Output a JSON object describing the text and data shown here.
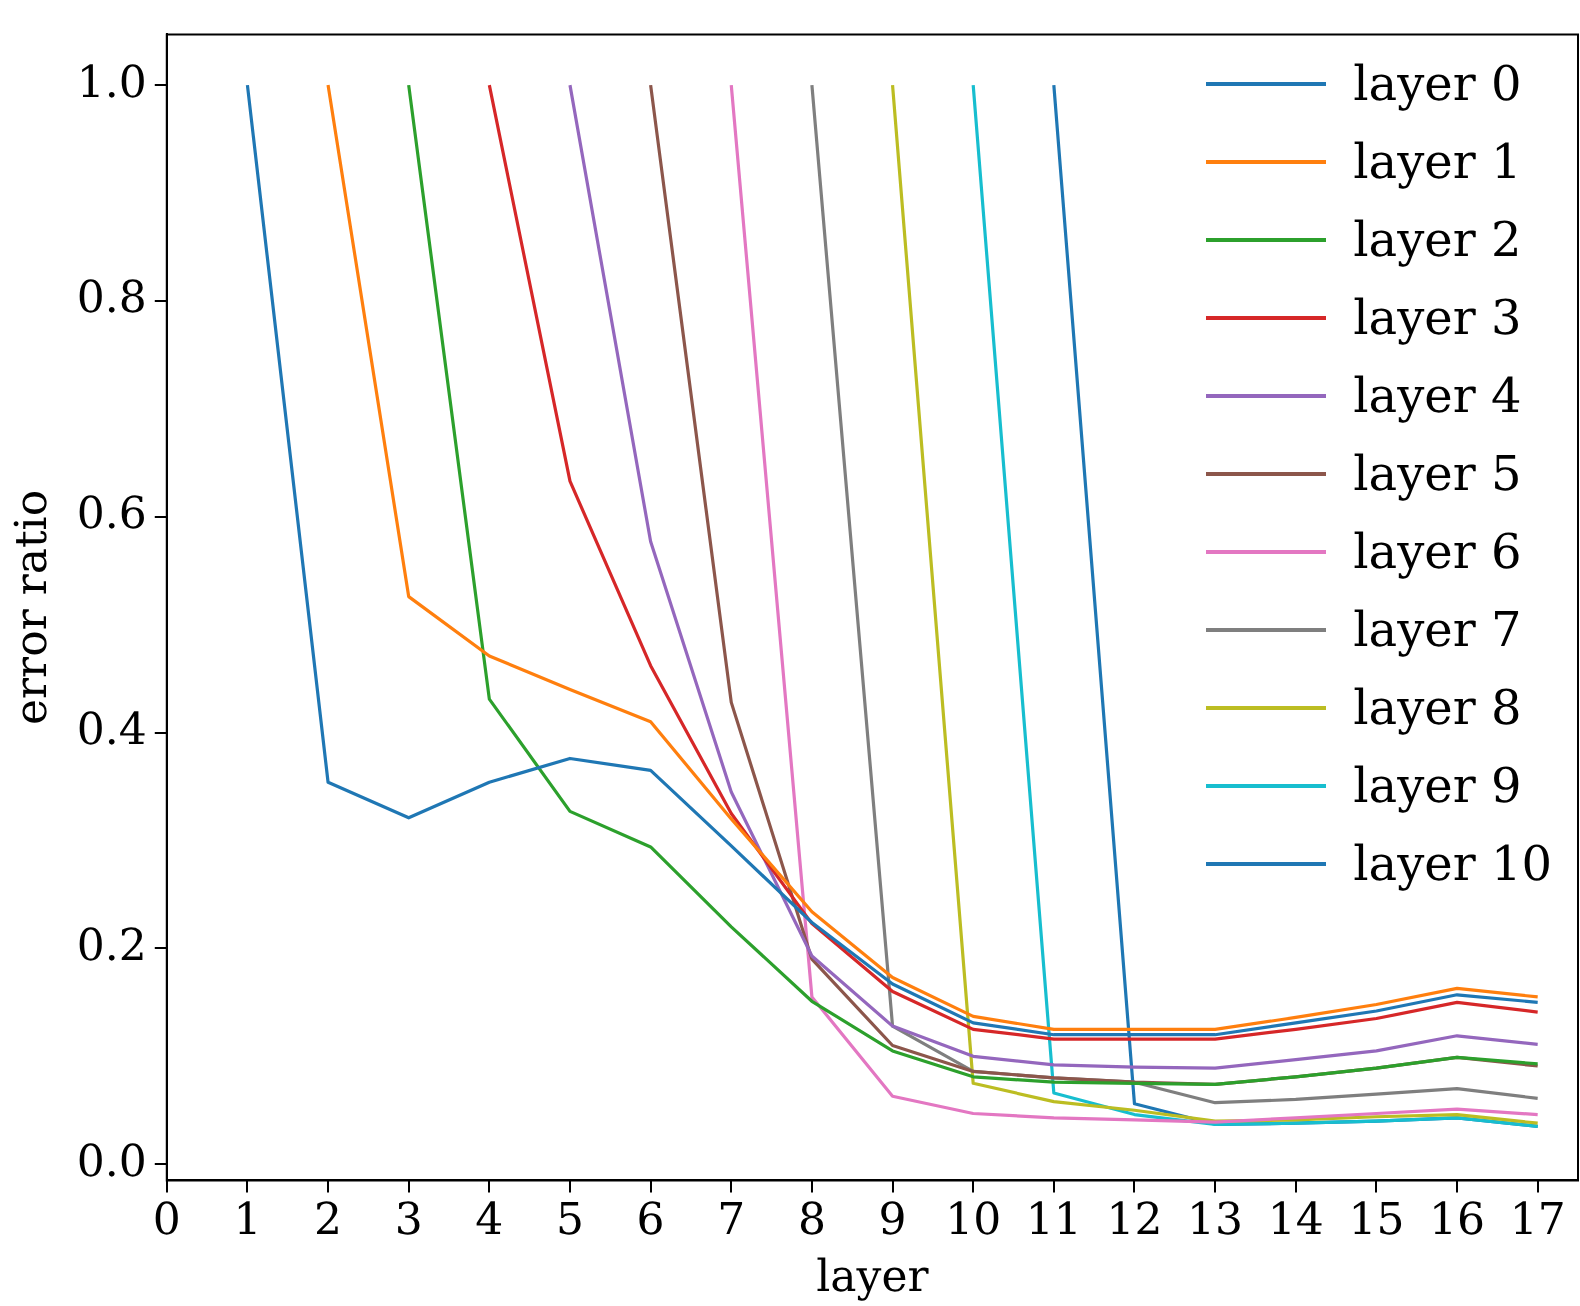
{
  "chart_data": {
    "type": "line",
    "xlabel": "layer",
    "ylabel": "error ratio",
    "x": [
      1,
      2,
      3,
      4,
      5,
      6,
      7,
      8,
      9,
      10,
      11,
      12,
      13,
      14,
      15,
      16,
      17
    ],
    "xlim": [
      0,
      17.5
    ],
    "xticks": [
      0,
      1,
      2,
      3,
      4,
      5,
      6,
      7,
      8,
      9,
      10,
      11,
      12,
      13,
      14,
      15,
      16,
      17
    ],
    "ylim": [
      -0.015,
      1.047
    ],
    "yticks": [
      {
        "value": 0,
        "label": "0.0"
      },
      0.2,
      0.4,
      0.6,
      0.8,
      {
        "value": 1,
        "label": "1.0"
      }
    ],
    "grid": false,
    "legend": "top right",
    "marker": "none",
    "line_style": "solid",
    "series": [
      {
        "name": "layer 0",
        "color": "#1f77b4",
        "values": [
          1,
          0.354,
          0.321,
          0.354,
          0.376,
          0.365,
          0.295,
          0.224,
          0.167,
          0.131,
          0.12,
          0.12,
          0.12,
          0.131,
          0.142,
          0.157,
          0.15
        ]
      },
      {
        "name": "layer 1",
        "color": "#ff7f0e",
        "values": [
          null,
          1,
          0.526,
          0.471,
          0.44,
          0.41,
          0.32,
          0.234,
          0.173,
          0.137,
          0.125,
          0.125,
          0.125,
          0.136,
          0.148,
          0.163,
          0.155
        ]
      },
      {
        "name": "layer 2",
        "color": "#2ca02c",
        "values": [
          null,
          null,
          1,
          0.431,
          0.327,
          0.294,
          0.22,
          0.151,
          0.105,
          0.081,
          0.076,
          0.075,
          0.074,
          0.081,
          0.089,
          0.099,
          0.093
        ]
      },
      {
        "name": "layer 3",
        "color": "#d62728",
        "values": [
          null,
          null,
          null,
          1,
          0.633,
          0.462,
          0.325,
          0.223,
          0.16,
          0.125,
          0.116,
          0.116,
          0.116,
          0.125,
          0.135,
          0.15,
          0.141
        ]
      },
      {
        "name": "layer 4",
        "color": "#9467bd",
        "values": [
          null,
          null,
          null,
          null,
          1,
          0.577,
          0.345,
          0.193,
          0.128,
          0.1,
          0.092,
          0.09,
          0.089,
          0.097,
          0.105,
          0.119,
          0.111
        ]
      },
      {
        "name": "layer 5",
        "color": "#8c564b",
        "values": [
          null,
          null,
          null,
          null,
          null,
          1,
          0.428,
          0.19,
          0.11,
          0.086,
          0.08,
          0.076,
          0.074,
          0.081,
          0.089,
          0.099,
          0.091
        ]
      },
      {
        "name": "layer 6",
        "color": "#e377c2",
        "values": [
          null,
          null,
          null,
          null,
          null,
          null,
          1,
          0.155,
          0.063,
          0.047,
          0.043,
          0.041,
          0.039,
          0.043,
          0.047,
          0.051,
          0.046
        ]
      },
      {
        "name": "layer 7",
        "color": "#7f7f7f",
        "values": [
          null,
          null,
          null,
          null,
          null,
          null,
          null,
          1,
          0.128,
          0.086,
          0.08,
          0.076,
          0.057,
          0.06,
          0.065,
          0.07,
          0.061
        ]
      },
      {
        "name": "layer 8",
        "color": "#bcbd22",
        "values": [
          null,
          null,
          null,
          null,
          null,
          null,
          null,
          null,
          1,
          0.075,
          0.058,
          0.05,
          0.04,
          0.041,
          0.044,
          0.046,
          0.038
        ]
      },
      {
        "name": "layer 9",
        "color": "#17becf",
        "values": [
          null,
          null,
          null,
          null,
          null,
          null,
          null,
          null,
          null,
          1,
          0.066,
          0.046,
          0.037,
          0.038,
          0.04,
          0.043,
          0.035
        ]
      },
      {
        "name": "layer 10",
        "color": "#1f77b4",
        "values": [
          null,
          null,
          null,
          null,
          null,
          null,
          null,
          null,
          null,
          null,
          1,
          0.056,
          0.037,
          0.038,
          0.04,
          0.043,
          0.035
        ]
      }
    ]
  }
}
